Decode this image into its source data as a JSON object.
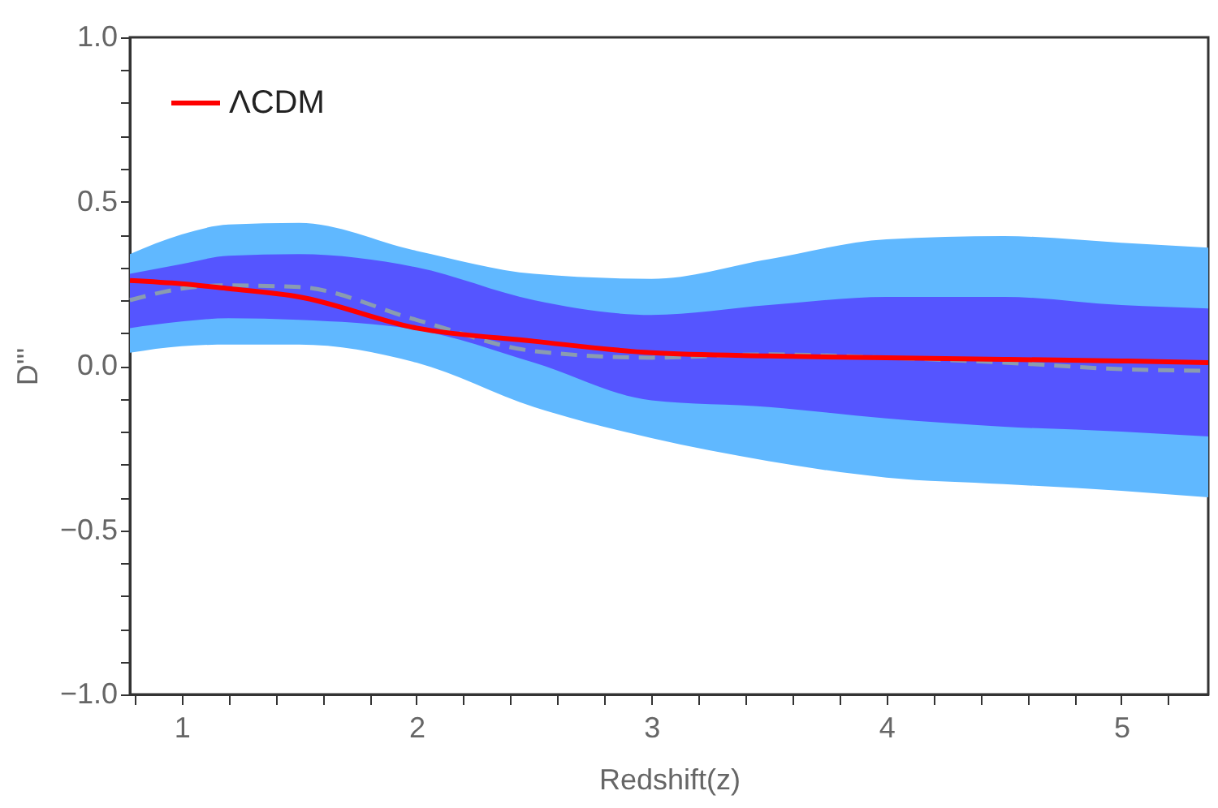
{
  "chart_data": {
    "type": "line",
    "xlabel": "Redshift(z)",
    "ylabel": "D'''",
    "x": [
      0.78,
      1,
      1.2,
      1.5,
      2,
      2.5,
      3,
      3.5,
      4,
      4.5,
      5,
      5.37
    ],
    "series": [
      {
        "type": "area",
        "color": "#60b8ff",
        "values": [
          null,
          null,
          null,
          null,
          null,
          null,
          null,
          null,
          null,
          null,
          null,
          null
        ],
        "lower": [
          0.04,
          0.06,
          0.065,
          0.065,
          0.01,
          -0.125,
          -0.22,
          -0.29,
          -0.34,
          -0.36,
          -0.38,
          -0.4
        ],
        "upper": [
          0.34,
          0.4,
          0.43,
          0.435,
          0.35,
          0.28,
          0.265,
          0.325,
          0.385,
          0.395,
          0.375,
          0.36
        ]
      },
      {
        "type": "area",
        "color": "#5555ff",
        "values": [
          null,
          null,
          null,
          null,
          null,
          null,
          null,
          null,
          null,
          null,
          null,
          null
        ],
        "lower": [
          0.115,
          0.135,
          0.145,
          0.14,
          0.11,
          0.01,
          -0.105,
          -0.125,
          -0.16,
          -0.185,
          -0.2,
          -0.215
        ],
        "upper": [
          0.28,
          0.31,
          0.335,
          0.34,
          0.3,
          0.2,
          0.155,
          0.185,
          0.21,
          0.21,
          0.185,
          0.175
        ]
      },
      {
        "line_style": "dashed",
        "color": "#8a9cb0",
        "values": [
          0.2,
          0.235,
          0.245,
          0.24,
          0.14,
          0.045,
          0.025,
          0.035,
          0.025,
          0.01,
          -0.01,
          -0.015
        ]
      },
      {
        "name": "ΛCDM",
        "color": "#ff0000",
        "values": [
          0.26,
          0.25,
          0.235,
          0.21,
          0.115,
          0.075,
          0.04,
          0.03,
          0.025,
          0.02,
          0.015,
          0.01
        ]
      }
    ],
    "xlim": [
      0.78,
      5.37
    ],
    "xticks": [
      {
        "value": 0.8,
        "label": null
      },
      1,
      {
        "value": 1.2,
        "label": null
      },
      {
        "value": 1.4,
        "label": null
      },
      {
        "value": 1.6,
        "label": null
      },
      {
        "value": 1.8,
        "label": null
      },
      2,
      {
        "value": 2.2,
        "label": null
      },
      {
        "value": 2.4,
        "label": null
      },
      {
        "value": 2.6,
        "label": null
      },
      {
        "value": 2.8,
        "label": null
      },
      3,
      {
        "value": 3.2,
        "label": null
      },
      {
        "value": 3.4,
        "label": null
      },
      {
        "value": 3.6,
        "label": null
      },
      {
        "value": 3.8,
        "label": null
      },
      4,
      {
        "value": 4.2,
        "label": null
      },
      {
        "value": 4.4,
        "label": null
      },
      {
        "value": 4.6,
        "label": null
      },
      {
        "value": 4.8,
        "label": null
      },
      5,
      {
        "value": 5.2,
        "label": null
      }
    ],
    "ylim": [
      -1,
      1
    ],
    "yticks": [
      {
        "value": -1,
        "label": "−1.0"
      },
      {
        "value": -0.9,
        "label": null
      },
      {
        "value": -0.8,
        "label": null
      },
      {
        "value": -0.7,
        "label": null
      },
      {
        "value": -0.6,
        "label": null
      },
      {
        "value": -0.5,
        "label": "−0.5"
      },
      {
        "value": -0.4,
        "label": null
      },
      {
        "value": -0.3,
        "label": null
      },
      {
        "value": -0.2,
        "label": null
      },
      {
        "value": -0.1,
        "label": null
      },
      {
        "value": 0,
        "label": "0.0"
      },
      {
        "value": 0.1,
        "label": null
      },
      {
        "value": 0.2,
        "label": null
      },
      {
        "value": 0.3,
        "label": null
      },
      {
        "value": 0.4,
        "label": null
      },
      {
        "value": 0.5,
        "label": "0.5"
      },
      {
        "value": 0.6,
        "label": null
      },
      {
        "value": 0.7,
        "label": null
      },
      {
        "value": 0.8,
        "label": null
      },
      {
        "value": 0.9,
        "label": null
      },
      {
        "value": 1,
        "label": "1.0"
      }
    ],
    "grid": false,
    "legend": "top left"
  }
}
